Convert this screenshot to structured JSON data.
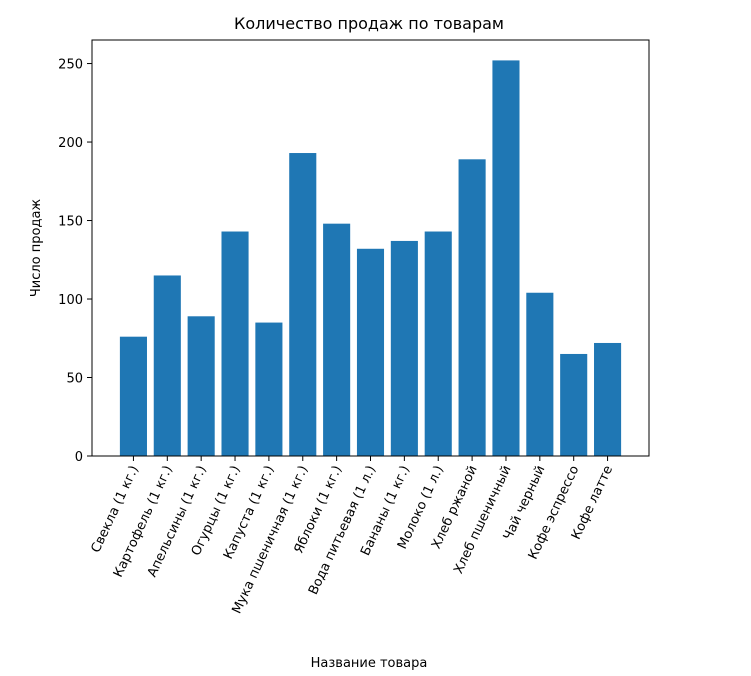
{
  "chart_data": {
    "type": "bar",
    "title": "Количество продаж по товарам",
    "xlabel": "Название товара",
    "ylabel": "Число продаж",
    "categories": [
      "Свекла (1 кг.)",
      "Картофель (1 кг.)",
      "Апельсины (1 кг.)",
      "Огурцы (1 кг.)",
      "Капуста (1 кг.)",
      "Мука пшеничная (1 кг.)",
      "Яблоки (1 кг.)",
      "Вода питьевая (1 л.)",
      "Бананы (1 кг.)",
      "Молоко (1 л.)",
      "Хлеб ржаной",
      "Хлеб пшеничный",
      "Чай черный",
      "Кофе эспрессо",
      "Кофе латте"
    ],
    "values": [
      76,
      115,
      89,
      143,
      85,
      193,
      148,
      132,
      137,
      143,
      189,
      252,
      104,
      65,
      72
    ],
    "ylim": [
      0,
      265
    ],
    "yticks": [
      0,
      50,
      100,
      150,
      200,
      250
    ],
    "grid": false,
    "bar_color": "#1f77b4"
  }
}
